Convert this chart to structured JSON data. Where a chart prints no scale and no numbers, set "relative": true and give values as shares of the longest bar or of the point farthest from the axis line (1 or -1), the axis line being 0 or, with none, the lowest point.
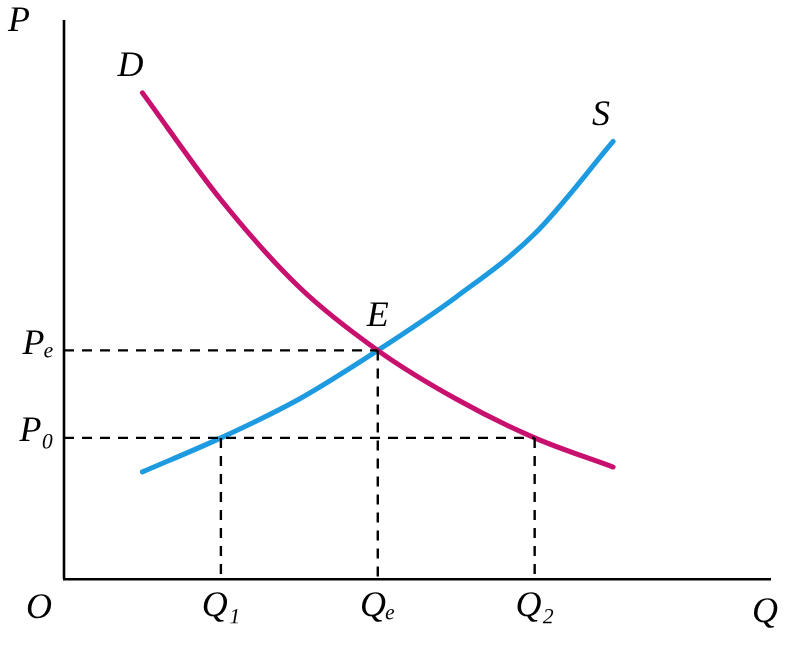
{
  "chart_data": {
    "type": "line",
    "relative": true,
    "xlabel": "Q",
    "ylabel": "P",
    "grid": false,
    "legend": false,
    "marker": "none",
    "categories": [
      null,
      null,
      "Q₁",
      null,
      "Qₑ",
      null,
      "Q₂",
      null,
      null,
      null
    ],
    "series": [
      {
        "name": "D",
        "color": "#c8106e",
        "line_style": "solid",
        "values": [
          null,
          1.0,
          0.78,
          0.6,
          0.47,
          0.37,
          0.29,
          0.23,
          null,
          null
        ]
      },
      {
        "name": "S",
        "color": "#1e9be0",
        "line_style": "solid",
        "values": [
          null,
          0.22,
          0.29,
          0.37,
          0.47,
          0.58,
          0.71,
          0.9,
          null,
          null
        ]
      }
    ],
    "ref_lines": [
      {
        "axis": "y",
        "value": 0.47,
        "label": "Pₑ",
        "color": "#000000",
        "line_style": "dashed"
      },
      {
        "axis": "y",
        "value": 0.29,
        "label": "P₀",
        "color": "#000000",
        "line_style": "dashed"
      },
      {
        "axis": "x",
        "value": "Q₁",
        "color": "#000000",
        "line_style": "dashed"
      },
      {
        "axis": "x",
        "value": "Qₑ",
        "color": "#000000",
        "line_style": "dashed"
      },
      {
        "axis": "x",
        "value": "Q₂",
        "color": "#000000",
        "line_style": "dashed"
      }
    ],
    "annotations": [
      {
        "text": "E",
        "x": "Qₑ",
        "y": 0.47
      },
      "O"
    ]
  }
}
